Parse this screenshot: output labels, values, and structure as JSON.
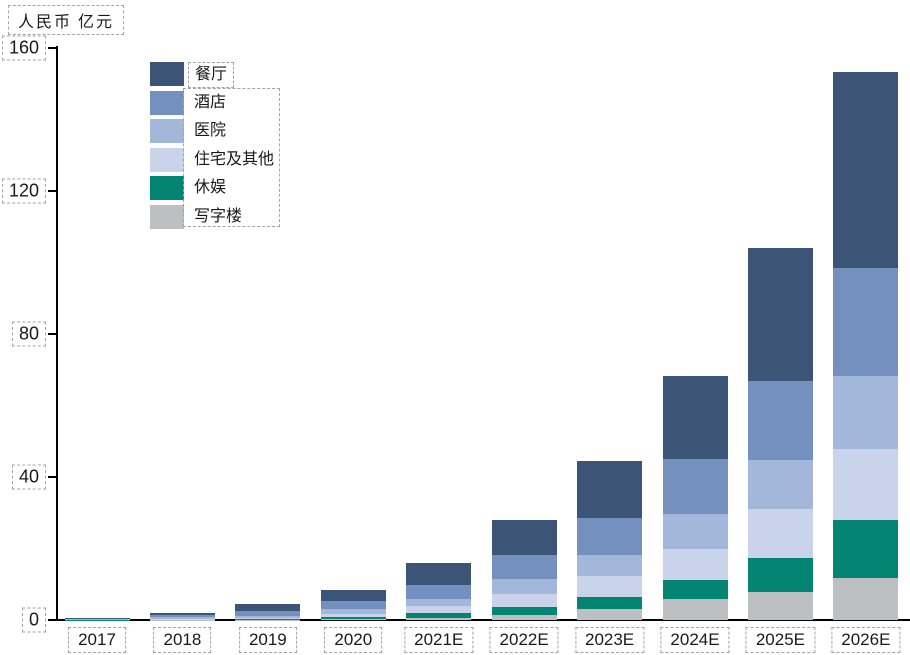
{
  "axis_title": "人民币 亿元",
  "chart_data": {
    "type": "bar",
    "stacked": true,
    "title": "",
    "ylabel": "人民币 亿元",
    "xlabel": "",
    "ylim": [
      0,
      160
    ],
    "yticks": [
      0,
      40,
      80,
      120,
      160
    ],
    "grid": false,
    "legend_position": "upper-left-inside",
    "legend_order_top_to_bottom": [
      "餐厅",
      "酒店",
      "医院",
      "住宅及其他",
      "休娱",
      "写字楼"
    ],
    "categories": [
      "2017",
      "2018",
      "2019",
      "2020",
      "2021E",
      "2022E",
      "2023E",
      "2024E",
      "2025E",
      "2026E"
    ],
    "series": [
      {
        "name": "写字楼",
        "color": "#bdc0c3",
        "values": [
          0.05,
          0.1,
          0.1,
          0.2,
          0.6,
          1.4,
          3.0,
          5.8,
          7.7,
          11.8
        ]
      },
      {
        "name": "休娱",
        "color": "#048473",
        "values": [
          0.05,
          0.1,
          0.2,
          0.6,
          1.4,
          2.2,
          3.5,
          5.4,
          9.7,
          16.2
        ]
      },
      {
        "name": "住宅及其他",
        "color": "#c9d4ea",
        "values": [
          0.1,
          0.2,
          0.3,
          0.9,
          1.9,
          3.6,
          5.9,
          8.7,
          13.6,
          19.7
        ]
      },
      {
        "name": "医院",
        "color": "#a3b7da",
        "values": [
          0.1,
          0.3,
          0.5,
          1.4,
          2.1,
          4.3,
          5.8,
          9.7,
          13.8,
          20.6
        ]
      },
      {
        "name": "酒店",
        "color": "#7390bf",
        "values": [
          0.15,
          0.7,
          1.5,
          2.2,
          3.9,
          6.7,
          10.4,
          15.4,
          22.1,
          30.1
        ]
      },
      {
        "name": "餐厅",
        "color": "#3c5577",
        "values": [
          0.2,
          0.6,
          1.9,
          3.2,
          6.0,
          9.8,
          16.0,
          23.3,
          37.2,
          55.0
        ]
      }
    ],
    "totals": [
      0.65,
      2.0,
      4.5,
      8.5,
      15.9,
      28.0,
      44.6,
      68.3,
      104.1,
      153.4
    ]
  }
}
